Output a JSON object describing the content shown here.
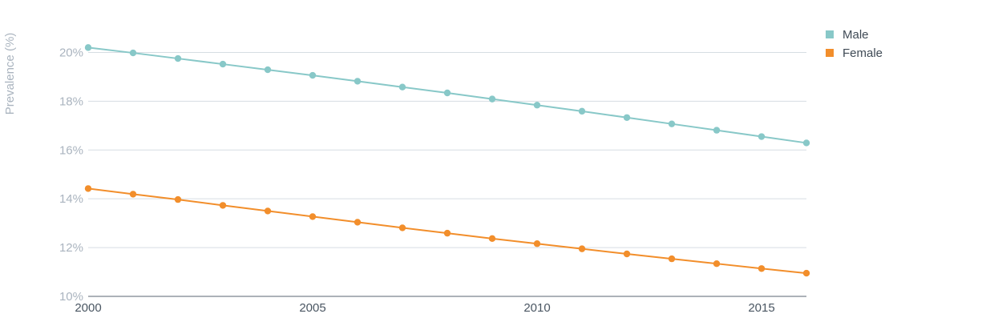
{
  "chart_data": {
    "type": "line",
    "ylabel": "Prevalence (%)",
    "xlabel": "",
    "xlim": [
      2000,
      2016
    ],
    "ylim": [
      10,
      21
    ],
    "yticks": [
      10,
      12,
      14,
      16,
      18,
      20
    ],
    "ytick_labels": [
      "10%",
      "12%",
      "14%",
      "16%",
      "18%",
      "20%"
    ],
    "xticks": [
      2000,
      2005,
      2010,
      2015
    ],
    "xtick_labels": [
      "2000",
      "2005",
      "2010",
      "2015"
    ],
    "grid": true,
    "legend_position": "top-right",
    "x": [
      2000,
      2001,
      2002,
      2003,
      2004,
      2005,
      2006,
      2007,
      2008,
      2009,
      2010,
      2011,
      2012,
      2013,
      2014,
      2015,
      2016
    ],
    "series": [
      {
        "name": "Male",
        "color": "#88c8c8",
        "values": [
          20.2,
          19.98,
          19.75,
          19.52,
          19.29,
          19.06,
          18.82,
          18.58,
          18.34,
          18.09,
          17.84,
          17.59,
          17.33,
          17.07,
          16.81,
          16.55,
          16.29
        ]
      },
      {
        "name": "Female",
        "color": "#f28e2b",
        "values": [
          14.42,
          14.19,
          13.97,
          13.73,
          13.5,
          13.27,
          13.04,
          12.81,
          12.59,
          12.37,
          12.16,
          11.95,
          11.74,
          11.54,
          11.34,
          11.14,
          10.95
        ]
      }
    ]
  }
}
